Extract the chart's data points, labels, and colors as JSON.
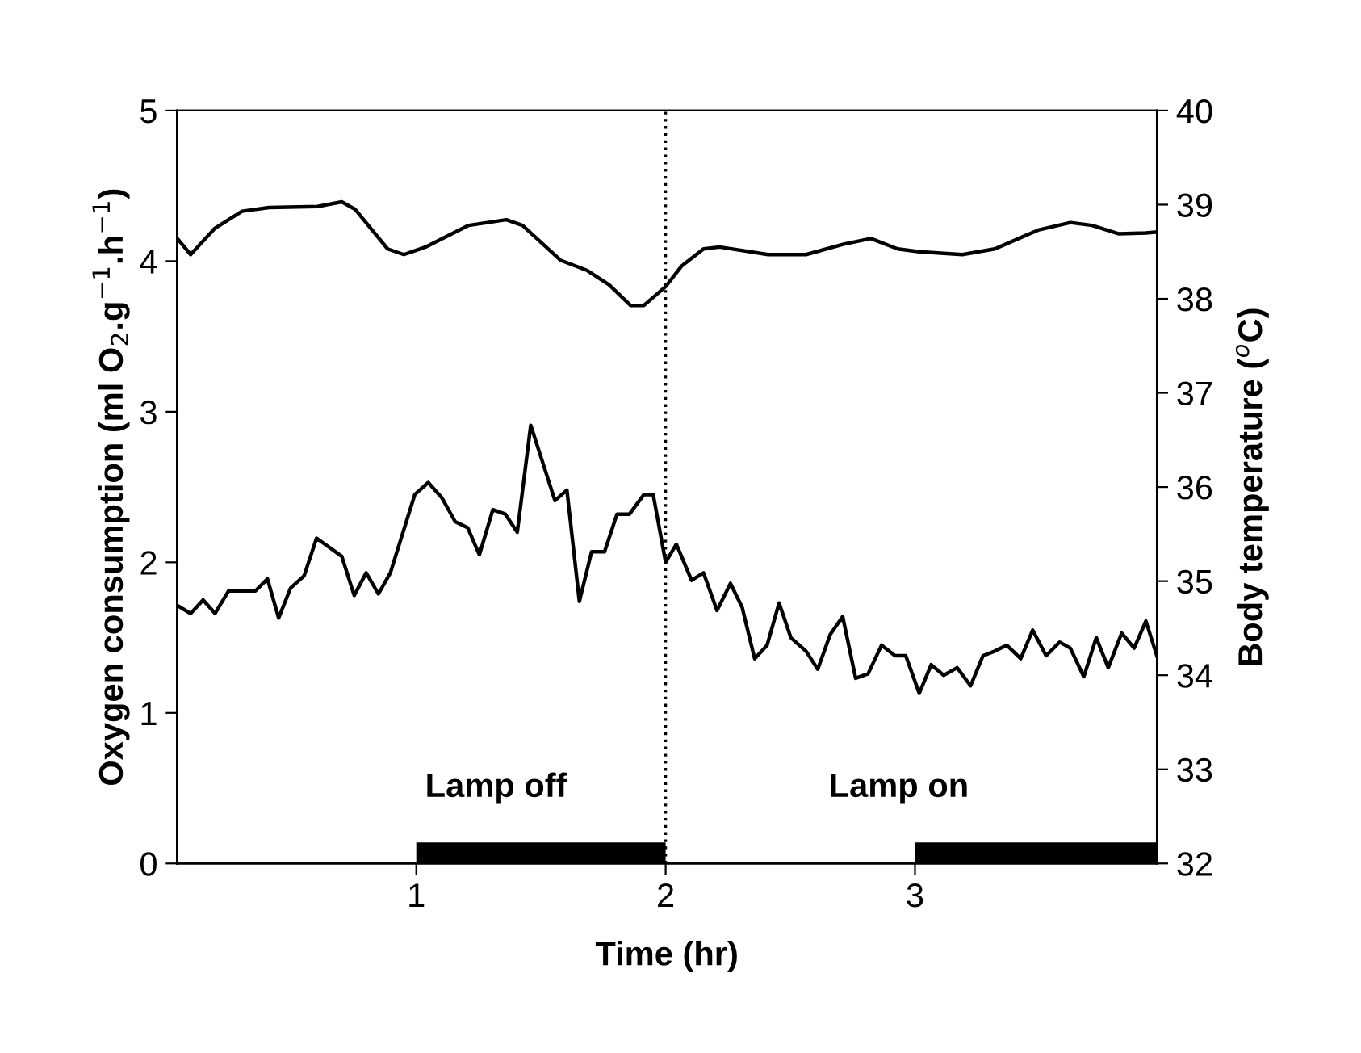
{
  "chart_data": {
    "type": "line",
    "xlabel": "Time (hr)",
    "ylabel": "Oxygen consumption (ml O$_{2}$.g$^{−1}$.h$^{−1}$)",
    "y2label": "Body temperature ($^{o}$C)",
    "xlim": [
      0.04,
      3.97
    ],
    "xticks": [
      1,
      2,
      3
    ],
    "ylim": [
      0,
      5
    ],
    "yticks": [
      0,
      1,
      2,
      3,
      4,
      5
    ],
    "y2lim": [
      32,
      40
    ],
    "y2ticks": [
      32,
      33,
      34,
      35,
      36,
      37,
      38,
      39,
      40
    ],
    "grid": false,
    "legend": false,
    "marker": "none",
    "line_style": "solid",
    "series": [
      {
        "color": "#000000",
        "axis": "y",
        "x": [
          0.045,
          0.095,
          0.145,
          0.193,
          0.247,
          0.355,
          0.403,
          0.448,
          0.496,
          0.55,
          0.6,
          0.701,
          0.751,
          0.799,
          0.848,
          0.896,
          0.994,
          1.048,
          1.102,
          1.156,
          1.206,
          1.253,
          1.307,
          1.357,
          1.405,
          1.459,
          1.556,
          1.604,
          1.654,
          1.703,
          1.755,
          1.805,
          1.855,
          1.913,
          1.95,
          2.0,
          2.043,
          2.104,
          2.152,
          2.206,
          2.26,
          2.307,
          2.357,
          2.407,
          2.455,
          2.502,
          2.563,
          2.61,
          2.66,
          2.71,
          2.762,
          2.812,
          2.866,
          2.92,
          2.963,
          3.017,
          3.065,
          3.115,
          3.169,
          3.223,
          3.273,
          3.32,
          3.368,
          3.424,
          3.472,
          3.526,
          3.58,
          3.623,
          3.677,
          3.727,
          3.775,
          3.829,
          3.879,
          3.926,
          3.97
        ],
        "values": [
          1.71,
          1.66,
          1.75,
          1.66,
          1.81,
          1.81,
          1.89,
          1.63,
          1.83,
          1.91,
          2.16,
          2.04,
          1.78,
          1.93,
          1.79,
          1.93,
          2.45,
          2.53,
          2.43,
          2.27,
          2.23,
          2.05,
          2.35,
          2.32,
          2.2,
          2.91,
          2.41,
          2.48,
          1.74,
          2.07,
          2.07,
          2.32,
          2.32,
          2.45,
          2.45,
          2.0,
          2.12,
          1.88,
          1.93,
          1.68,
          1.86,
          1.7,
          1.36,
          1.45,
          1.73,
          1.5,
          1.41,
          1.29,
          1.52,
          1.64,
          1.23,
          1.26,
          1.45,
          1.38,
          1.38,
          1.13,
          1.32,
          1.25,
          1.3,
          1.18,
          1.38,
          1.41,
          1.45,
          1.36,
          1.55,
          1.38,
          1.47,
          1.43,
          1.24,
          1.5,
          1.3,
          1.53,
          1.43,
          1.61,
          1.38
        ]
      },
      {
        "color": "#000000",
        "axis": "y2",
        "x": [
          0.045,
          0.095,
          0.193,
          0.301,
          0.409,
          0.604,
          0.701,
          0.755,
          0.885,
          0.95,
          1.037,
          1.21,
          1.361,
          1.426,
          1.578,
          1.686,
          1.773,
          1.859,
          1.913,
          2.0,
          2.065,
          2.152,
          2.216,
          2.411,
          2.563,
          2.714,
          2.823,
          2.931,
          3.017,
          3.19,
          3.32,
          3.494,
          3.623,
          3.71,
          3.818,
          3.926,
          3.97
        ],
        "values": [
          38.63,
          38.47,
          38.75,
          38.93,
          38.97,
          38.98,
          39.03,
          38.95,
          38.53,
          38.47,
          38.55,
          38.78,
          38.84,
          38.78,
          38.41,
          38.3,
          38.15,
          37.93,
          37.93,
          38.13,
          38.35,
          38.53,
          38.55,
          38.47,
          38.47,
          38.58,
          38.64,
          38.53,
          38.5,
          38.47,
          38.53,
          38.73,
          38.81,
          38.78,
          38.69,
          38.7,
          38.71
        ]
      },
      {
        "type": "area",
        "color": "#000000",
        "axis": "y",
        "x": [
          1,
          2,
          2.5,
          3,
          3.97
        ],
        "values": [
          0.14,
          0.14,
          null,
          0.14,
          0.14
        ]
      }
    ],
    "ref_lines": [
      {
        "axis": "x",
        "value": 2,
        "color": "#000000",
        "line_style": "dotted"
      }
    ],
    "annotations": [
      "Lamp off",
      "Lamp on"
    ]
  }
}
